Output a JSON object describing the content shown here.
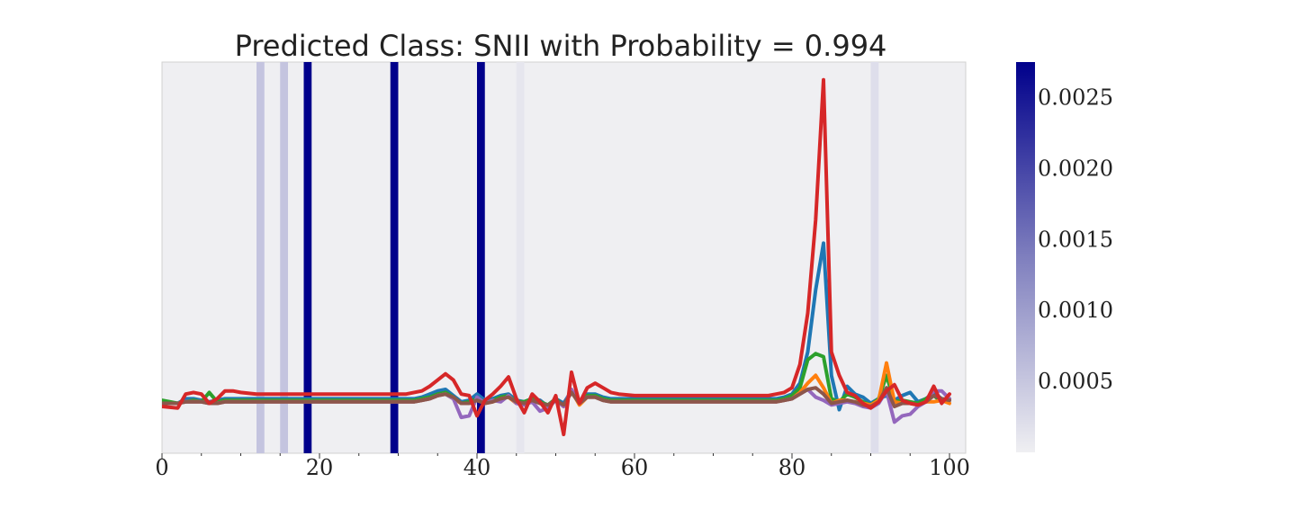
{
  "chart_data": {
    "type": "line",
    "title": "Predicted Class: SNII with Probability = 0.994",
    "xlabel": "",
    "ylabel": "",
    "xlim": [
      0,
      102
    ],
    "ylim": [
      -0.3,
      2.3
    ],
    "grid": false,
    "x_ticks": [
      0,
      20,
      40,
      60,
      80,
      100
    ],
    "x_tick_labels": [
      "0",
      "20",
      "40",
      "60",
      "80",
      "100"
    ],
    "background_color": "#efeff2",
    "colorbar": {
      "min": 0.0,
      "max": 0.00275,
      "ticks": [
        0.0005,
        0.001,
        0.0015,
        0.002,
        0.0025
      ],
      "tick_labels": [
        "0.0005",
        "0.0010",
        "0.0015",
        "0.0020",
        "0.0025"
      ],
      "color_low": "#efeff2",
      "color_high": "#00008b"
    },
    "attention": [
      {
        "x": 12.5,
        "value": 0.0005
      },
      {
        "x": 15.5,
        "value": 0.0005
      },
      {
        "x": 18.5,
        "value": 0.0028
      },
      {
        "x": 29.5,
        "value": 0.0028
      },
      {
        "x": 40.5,
        "value": 0.0028
      },
      {
        "x": 45.5,
        "value": 0.0001
      },
      {
        "x": 90.5,
        "value": 0.0002
      }
    ],
    "x": [
      0,
      2,
      3,
      4,
      5,
      6,
      7,
      8,
      9,
      10,
      12,
      14,
      16,
      18,
      20,
      22,
      24,
      26,
      28,
      30,
      31,
      32,
      33,
      34,
      35,
      36,
      37,
      38,
      39,
      40,
      41,
      42,
      43,
      44,
      45,
      46,
      47,
      48,
      49,
      50,
      51,
      52,
      53,
      54,
      55,
      56,
      57,
      58,
      60,
      62,
      64,
      66,
      68,
      70,
      72,
      74,
      76,
      77,
      78,
      79,
      80,
      81,
      82,
      83,
      84,
      85,
      86,
      87,
      88,
      89,
      90,
      91,
      92,
      93,
      94,
      95,
      96,
      97,
      98,
      99,
      100
    ],
    "series": [
      {
        "color": "#d62728",
        "values": [
          0.0,
          -0.01,
          0.08,
          0.09,
          0.08,
          0.02,
          0.05,
          0.1,
          0.1,
          0.09,
          0.08,
          0.08,
          0.08,
          0.08,
          0.08,
          0.08,
          0.08,
          0.08,
          0.08,
          0.08,
          0.08,
          0.09,
          0.1,
          0.13,
          0.17,
          0.21,
          0.17,
          0.08,
          0.07,
          -0.06,
          0.04,
          0.08,
          0.13,
          0.19,
          0.05,
          -0.04,
          0.08,
          0.03,
          -0.04,
          0.07,
          -0.18,
          0.22,
          0.02,
          0.12,
          0.15,
          0.12,
          0.09,
          0.08,
          0.07,
          0.07,
          0.07,
          0.07,
          0.07,
          0.07,
          0.07,
          0.07,
          0.07,
          0.07,
          0.08,
          0.09,
          0.12,
          0.27,
          0.6,
          1.2,
          2.1,
          0.35,
          0.2,
          0.09,
          0.07,
          0.02,
          -0.01,
          0.03,
          0.1,
          0.14,
          0.04,
          0.02,
          0.01,
          0.03,
          0.13,
          0.02,
          0.08
        ]
      },
      {
        "color": "#1f77b4",
        "values": [
          0.03,
          0.02,
          0.05,
          0.05,
          0.04,
          0.03,
          0.04,
          0.05,
          0.05,
          0.05,
          0.05,
          0.05,
          0.05,
          0.05,
          0.05,
          0.05,
          0.05,
          0.05,
          0.05,
          0.05,
          0.05,
          0.05,
          0.06,
          0.08,
          0.1,
          0.11,
          0.07,
          0.03,
          0.04,
          0.08,
          0.04,
          0.05,
          0.07,
          0.08,
          0.04,
          0.03,
          0.05,
          0.04,
          0.0,
          0.05,
          0.02,
          0.1,
          0.02,
          0.08,
          0.08,
          0.06,
          0.05,
          0.05,
          0.05,
          0.05,
          0.05,
          0.05,
          0.05,
          0.05,
          0.05,
          0.05,
          0.05,
          0.05,
          0.05,
          0.06,
          0.08,
          0.15,
          0.35,
          0.75,
          1.05,
          0.2,
          -0.02,
          0.13,
          0.08,
          0.06,
          0.02,
          0.05,
          0.07,
          0.04,
          0.07,
          0.09,
          0.03,
          0.05,
          0.09,
          0.05,
          0.04
        ]
      },
      {
        "color": "#2ca02c",
        "values": [
          0.04,
          0.02,
          0.03,
          0.04,
          0.03,
          0.09,
          0.03,
          0.04,
          0.04,
          0.04,
          0.04,
          0.04,
          0.04,
          0.04,
          0.04,
          0.04,
          0.04,
          0.04,
          0.04,
          0.04,
          0.04,
          0.04,
          0.05,
          0.06,
          0.08,
          0.09,
          0.06,
          0.02,
          0.03,
          0.05,
          0.03,
          0.04,
          0.06,
          0.07,
          0.03,
          0.03,
          0.05,
          0.03,
          0.01,
          0.05,
          0.0,
          0.1,
          0.02,
          0.07,
          0.07,
          0.05,
          0.04,
          0.04,
          0.04,
          0.04,
          0.04,
          0.04,
          0.04,
          0.04,
          0.04,
          0.04,
          0.04,
          0.04,
          0.04,
          0.05,
          0.07,
          0.12,
          0.3,
          0.34,
          0.32,
          0.05,
          0.03,
          0.08,
          0.06,
          0.03,
          0.01,
          0.05,
          0.2,
          0.03,
          0.04,
          0.03,
          0.02,
          0.05,
          0.07,
          0.03,
          0.05
        ]
      },
      {
        "color": "#ff7f0e",
        "values": [
          0.02,
          0.02,
          0.03,
          0.03,
          0.03,
          0.02,
          0.02,
          0.03,
          0.03,
          0.03,
          0.03,
          0.03,
          0.03,
          0.03,
          0.03,
          0.03,
          0.03,
          0.03,
          0.03,
          0.03,
          0.03,
          0.03,
          0.04,
          0.05,
          0.07,
          0.08,
          0.05,
          0.02,
          0.02,
          0.04,
          0.02,
          0.03,
          0.05,
          0.06,
          0.02,
          0.02,
          0.04,
          0.02,
          0.0,
          0.04,
          0.0,
          0.1,
          0.01,
          0.06,
          0.06,
          0.04,
          0.03,
          0.03,
          0.03,
          0.03,
          0.03,
          0.03,
          0.03,
          0.03,
          0.03,
          0.03,
          0.03,
          0.03,
          0.03,
          0.04,
          0.05,
          0.09,
          0.15,
          0.2,
          0.12,
          0.02,
          0.04,
          0.04,
          0.03,
          0.02,
          0.01,
          0.04,
          0.28,
          0.03,
          0.02,
          0.02,
          0.01,
          0.03,
          0.03,
          0.04,
          0.02
        ]
      },
      {
        "color": "#9467bd",
        "values": [
          0.02,
          0.02,
          0.03,
          0.03,
          0.03,
          0.02,
          0.02,
          0.03,
          0.03,
          0.03,
          0.03,
          0.03,
          0.03,
          0.03,
          0.03,
          0.03,
          0.03,
          0.03,
          0.03,
          0.03,
          0.03,
          0.03,
          0.04,
          0.05,
          0.07,
          0.08,
          0.05,
          -0.07,
          -0.06,
          0.06,
          0.02,
          0.04,
          0.03,
          0.07,
          0.02,
          0.01,
          0.03,
          -0.03,
          -0.01,
          0.04,
          0.0,
          0.11,
          0.02,
          0.06,
          0.06,
          0.04,
          0.03,
          0.03,
          0.03,
          0.03,
          0.03,
          0.03,
          0.03,
          0.03,
          0.03,
          0.03,
          0.03,
          0.03,
          0.03,
          0.04,
          0.05,
          0.08,
          0.11,
          0.06,
          0.04,
          0.01,
          0.02,
          0.03,
          0.02,
          0.0,
          -0.01,
          0.02,
          0.1,
          -0.1,
          -0.06,
          -0.05,
          0.0,
          0.03,
          0.1,
          0.1,
          0.05
        ]
      },
      {
        "color": "#8c564b",
        "values": [
          0.02,
          0.02,
          0.03,
          0.03,
          0.03,
          0.02,
          0.02,
          0.03,
          0.03,
          0.03,
          0.03,
          0.03,
          0.03,
          0.03,
          0.03,
          0.03,
          0.03,
          0.03,
          0.03,
          0.03,
          0.03,
          0.03,
          0.04,
          0.05,
          0.07,
          0.08,
          0.06,
          0.02,
          0.02,
          0.04,
          0.02,
          0.03,
          0.05,
          0.06,
          0.03,
          0.02,
          0.04,
          0.02,
          0.01,
          0.04,
          0.01,
          0.09,
          0.02,
          0.06,
          0.06,
          0.04,
          0.03,
          0.03,
          0.03,
          0.03,
          0.03,
          0.03,
          0.03,
          0.03,
          0.03,
          0.03,
          0.03,
          0.03,
          0.03,
          0.04,
          0.05,
          0.08,
          0.11,
          0.12,
          0.08,
          0.02,
          0.03,
          0.04,
          0.03,
          0.01,
          0.0,
          0.03,
          0.12,
          0.0,
          0.02,
          0.02,
          0.01,
          0.03,
          0.07,
          0.05,
          0.04
        ]
      }
    ]
  }
}
